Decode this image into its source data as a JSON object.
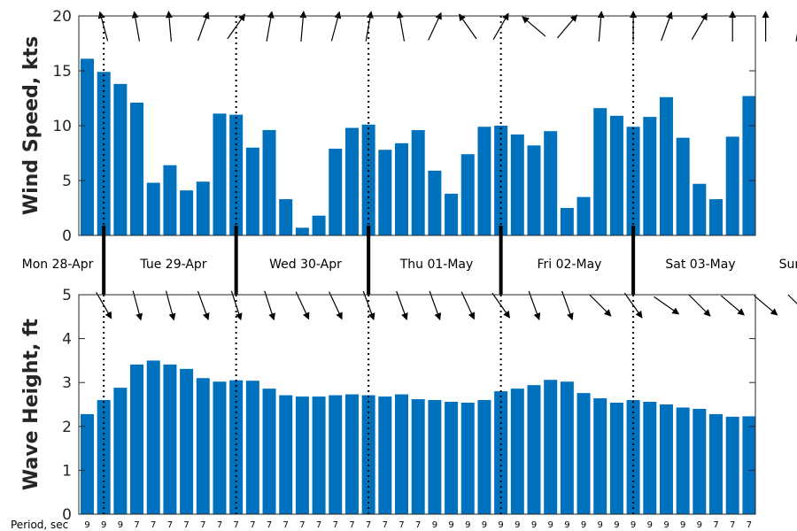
{
  "colors": {
    "bar": "#0072BD",
    "axis": "#262626",
    "arrow": "#000000"
  },
  "chart_data": {
    "type": "bar",
    "time_step_hours": 3,
    "start": "Mon 28-Apr 00:00",
    "day_labels": [
      "Mon 28-Apr",
      "Tue 29-Apr",
      "Wed 30-Apr",
      "Thu 01-May",
      "Fri 02-May",
      "Sat 03-May",
      "Sun"
    ],
    "wind": {
      "ylabel": "Wind Speed, kts",
      "ylim": [
        0,
        20
      ],
      "yticks": [
        "0",
        "5",
        "10",
        "15",
        "20"
      ],
      "values": [
        16.1,
        14.9,
        13.8,
        12.1,
        4.8,
        6.4,
        4.1,
        4.9,
        11.1,
        11.0,
        8.0,
        9.6,
        3.3,
        0.7,
        1.8,
        7.9,
        9.8,
        10.1,
        7.8,
        8.4,
        9.6,
        5.9,
        3.8,
        7.4,
        9.9,
        10.0,
        9.2,
        8.2,
        9.5,
        2.5,
        3.5,
        11.6,
        10.9,
        9.9,
        10.8,
        12.6,
        8.9,
        4.7,
        3.3,
        9.0,
        12.7
      ],
      "direction_arrows_deg": [
        255,
        260,
        265,
        290,
        305,
        280,
        275,
        285,
        280,
        260,
        295,
        235,
        300,
        220,
        310,
        275,
        270,
        290,
        300,
        270,
        270,
        280,
        285,
        272
      ]
    },
    "wave": {
      "ylabel": "Wave Height, ft",
      "ylim": [
        0,
        5
      ],
      "yticks": [
        "0",
        "1",
        "2",
        "3",
        "4",
        "5"
      ],
      "values": [
        2.28,
        2.6,
        2.88,
        3.41,
        3.5,
        3.41,
        3.31,
        3.1,
        3.02,
        3.05,
        3.04,
        2.86,
        2.71,
        2.68,
        2.68,
        2.71,
        2.73,
        2.71,
        2.68,
        2.73,
        2.62,
        2.6,
        2.56,
        2.54,
        2.6,
        2.8,
        2.86,
        2.94,
        3.06,
        3.02,
        2.76,
        2.64,
        2.54,
        2.6,
        2.56,
        2.5,
        2.43,
        2.4,
        2.28,
        2.22,
        2.23
      ],
      "direction_arrows_deg": [
        60,
        75,
        75,
        70,
        72,
        72,
        65,
        65,
        70,
        70,
        70,
        65,
        55,
        70,
        70,
        45,
        55,
        35,
        45,
        40,
        40,
        45,
        40,
        45
      ],
      "period_label": "Period, sec",
      "periods": [
        "9",
        "9",
        "9",
        "7",
        "7",
        "7",
        "7",
        "7",
        "7",
        "7",
        "7",
        "7",
        "7",
        "7",
        "7",
        "7",
        "7",
        "7",
        "7",
        "7",
        "7",
        "9",
        "9",
        "9",
        "9",
        "9",
        "9",
        "9",
        "9",
        "9",
        "9",
        "9",
        "9",
        "9",
        "9",
        "9",
        "9",
        "9",
        "7",
        "7",
        "7"
      ]
    }
  }
}
